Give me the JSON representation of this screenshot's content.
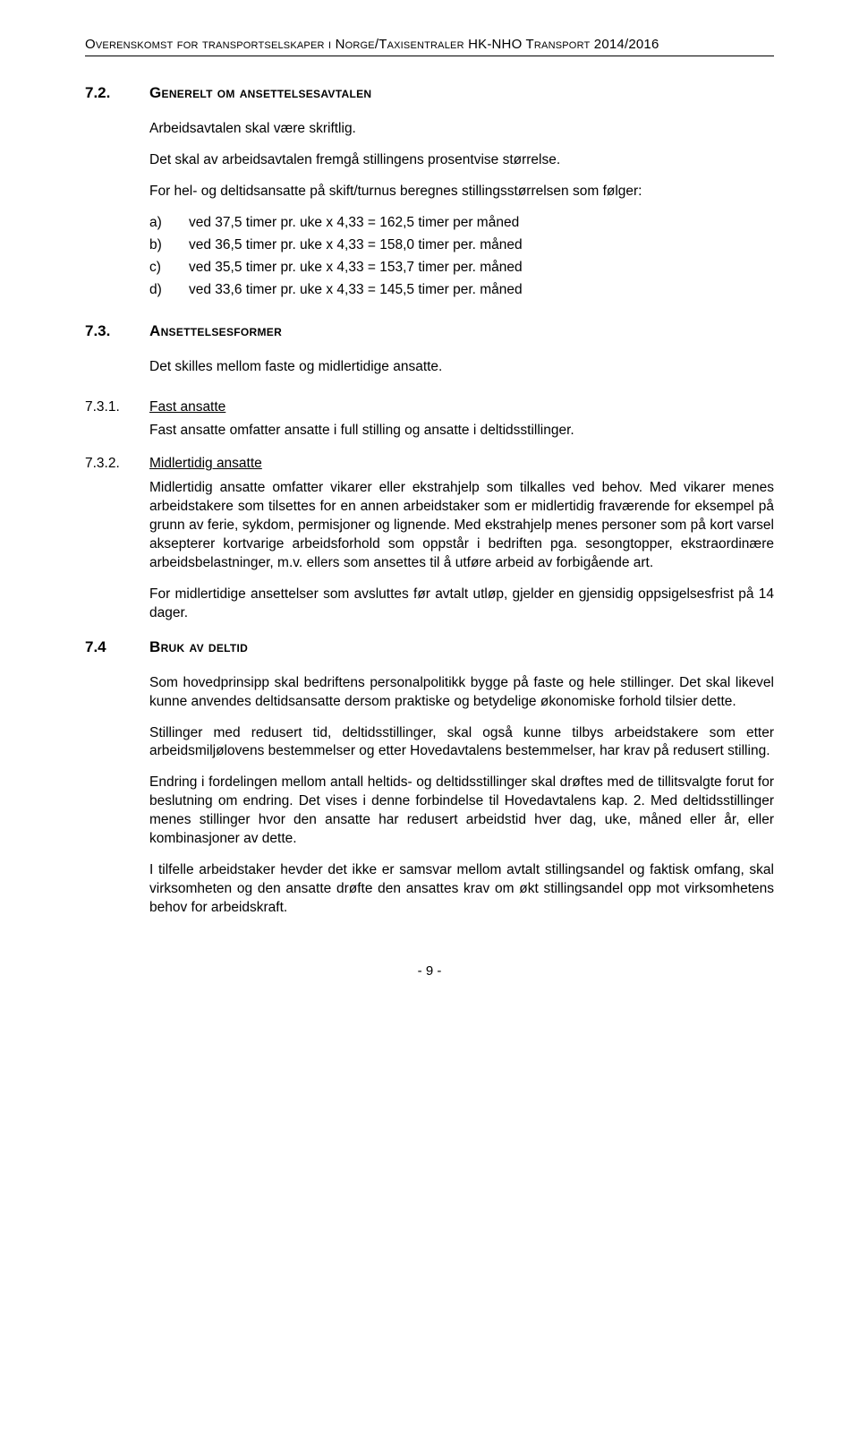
{
  "header": "Overenskomst for transportselskaper i Norge/Taxisentraler HK-NHO Transport 2014/2016",
  "s72": {
    "num": "7.2.",
    "title": "Generelt om ansettelsesavtalen",
    "p1": "Arbeidsavtalen skal være skriftlig.",
    "p2": "Det skal av arbeidsavtalen fremgå stillingens prosentvise størrelse.",
    "p3": "For hel- og deltidsansatte på skift/turnus beregnes stillingsstørrelsen som følger:",
    "a": {
      "letter": "a)",
      "text": "ved 37,5 timer pr. uke x 4,33 = 162,5 timer per måned"
    },
    "b": {
      "letter": "b)",
      "text": "ved 36,5 timer pr. uke x 4,33 = 158,0 timer per. måned"
    },
    "c": {
      "letter": "c)",
      "text": "ved 35,5 timer pr. uke x 4,33 = 153,7 timer per. måned"
    },
    "d": {
      "letter": "d)",
      "text": "ved 33,6 timer pr. uke x 4,33 = 145,5 timer per. måned"
    }
  },
  "s73": {
    "num": "7.3.",
    "title": "Ansettelsesformer",
    "p1": "Det skilles mellom faste og midlertidige ansatte."
  },
  "s731": {
    "num": "7.3.1.",
    "title": "Fast ansatte",
    "p1": "Fast ansatte omfatter ansatte i full stilling og ansatte i deltidsstillinger."
  },
  "s732": {
    "num": "7.3.2.",
    "title": "Midlertidig ansatte",
    "p1": "Midlertidig ansatte omfatter vikarer eller ekstrahjelp som tilkalles ved behov. Med vikarer menes arbeidstakere som tilsettes for en annen arbeidstaker som er midlertidig fraværende for eksempel på grunn av ferie, sykdom, permisjoner og lignende. Med ekstrahjelp menes personer som på kort varsel aksepterer kortvarige arbeidsforhold som oppstår i bedriften pga. sesongtopper, ekstraordinære arbeidsbelastninger, m.v. ellers som ansettes til å utføre arbeid av forbigående art.",
    "p2": "For midlertidige ansettelser som avsluttes før avtalt utløp, gjelder en gjensidig opp­sigelsesfrist på 14 dager."
  },
  "s74": {
    "num": "7.4",
    "title": "Bruk av deltid",
    "p1": "Som hovedprinsipp skal bedriftens personalpolitikk bygge på faste og hele stillinger. Det skal likevel kunne anvendes deltidsansatte dersom praktiske og betydelige økonomiske forhold tilsier dette.",
    "p2": "Stillinger med redusert tid, deltidsstillinger, skal også kunne tilbys arbeidstakere som etter arbeidsmiljølovens bestemmelser og etter Hovedavtalens bestemmelser, har krav på redusert stilling.",
    "p3": "Endring i fordelingen mellom antall heltids- og deltidsstillinger skal drøftes med de tillitsvalgte forut for beslutning om endring. Det vises i denne forbindelse til Hovedavtalens kap. 2. Med deltidsstillinger menes stillinger hvor den ansatte har redusert arbeidstid hver dag, uke, måned eller år, eller kombinasjoner av dette.",
    "p4": "I tilfelle arbeidstaker hevder det ikke er samsvar mellom avtalt stillingsandel og faktisk omfang, skal virksomheten og den ansatte drøfte den ansattes krav om økt stillingsandel opp mot virksomhetens behov for arbeidskraft."
  },
  "page": "- 9 -"
}
